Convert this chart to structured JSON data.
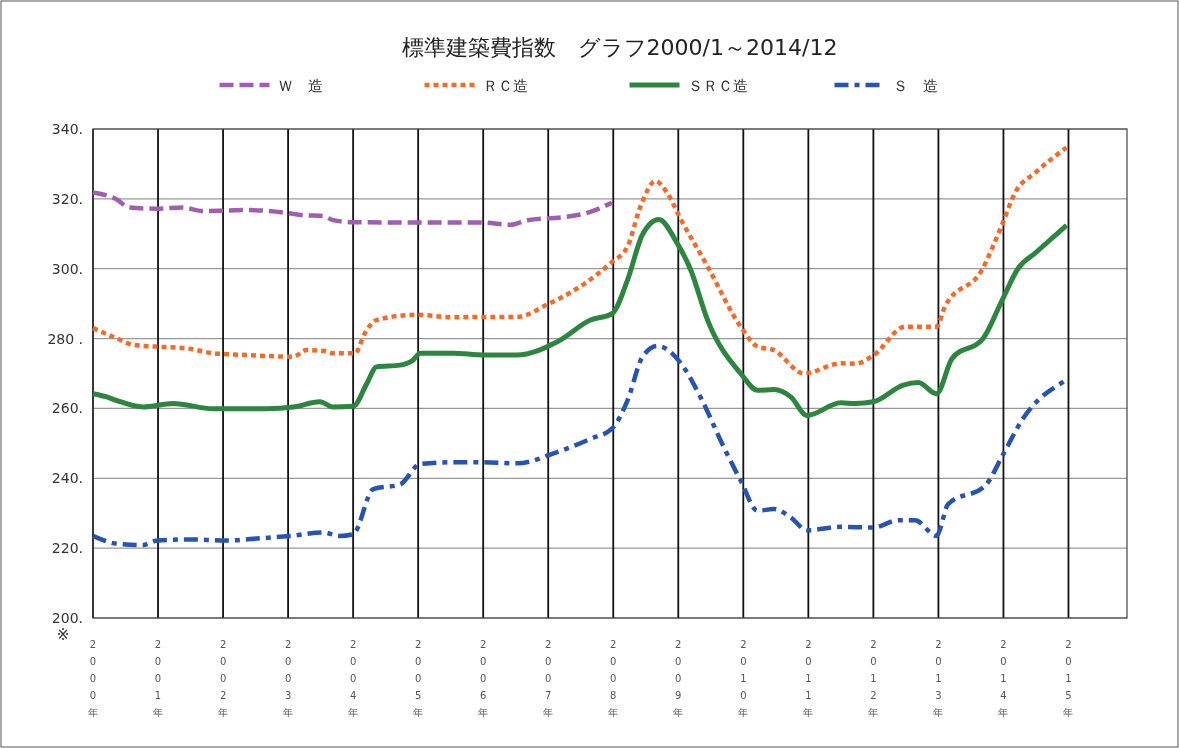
{
  "chart_data": {
    "type": "line",
    "title": "標準建築費指数　グラフ2000/1～2014/12",
    "xlim": [
      2000,
      2015.9
    ],
    "xticks": [
      {
        "value": 2000,
        "label": "2000年"
      },
      {
        "value": 2001,
        "label": "2001年"
      },
      {
        "value": 2002,
        "label": "2002年"
      },
      {
        "value": 2003,
        "label": "2003年"
      },
      {
        "value": 2004,
        "label": "2004年"
      },
      {
        "value": 2005,
        "label": "2005年"
      },
      {
        "value": 2006,
        "label": "2006年"
      },
      {
        "value": 2007,
        "label": "2007年"
      },
      {
        "value": 2008,
        "label": "2008年"
      },
      {
        "value": 2009,
        "label": "2009年"
      },
      {
        "value": 2010,
        "label": "2010年"
      },
      {
        "value": 2011,
        "label": "2011年"
      },
      {
        "value": 2012,
        "label": "2012年"
      },
      {
        "value": 2013,
        "label": "2013年"
      },
      {
        "value": 2014,
        "label": "2014年"
      },
      {
        "value": 2015,
        "label": "2015年"
      }
    ],
    "ylim": [
      200,
      340
    ],
    "yticks": [
      {
        "value": 200,
        "label": "200."
      },
      {
        "value": 220,
        "label": "220."
      },
      {
        "value": 240,
        "label": "240."
      },
      {
        "value": 260,
        "label": "260."
      },
      {
        "value": 280,
        "label": "280 ."
      },
      {
        "value": 300,
        "label": "300."
      },
      {
        "value": 320,
        "label": "320."
      },
      {
        "value": 340,
        "label": "340."
      }
    ],
    "grid": true,
    "legend": "top",
    "annotations": [
      "※"
    ],
    "series": [
      {
        "name": "Ｗ　造",
        "color": "#a05fae",
        "line_style": "dashed",
        "x": [
          2000,
          2000.36,
          2000.56,
          2000.97,
          2001.38,
          2001.69,
          2002.36,
          2002.97,
          2003.23,
          2003.54,
          2003.69,
          2004.0,
          2005.54,
          2006.0,
          2006.42,
          2006.68,
          2007.29,
          2007.6,
          2007.98
        ],
        "values": [
          321.8,
          319.9,
          317.5,
          317.2,
          317.5,
          316.5,
          316.8,
          316,
          315.3,
          315.1,
          313.9,
          313.3,
          313.2,
          313.2,
          312.6,
          313.9,
          314.9,
          316,
          318.9
        ]
      },
      {
        "name": "ＲＣ造",
        "color": "#f26b2a",
        "line_style": "dotted",
        "x": [
          2000,
          2000.36,
          2000.62,
          2000.97,
          2001.44,
          2001.85,
          2002.36,
          2003.08,
          2003.28,
          2003.54,
          2003.69,
          2004.03,
          2004.18,
          2004.36,
          2004.97,
          2005.54,
          2006.0,
          2006.52,
          2006.98,
          2007.5,
          2007.96,
          2008.22,
          2008.42,
          2008.65,
          2008.83,
          2009.04,
          2009.45,
          2009.96,
          2010.22,
          2010.47,
          2010.93,
          2011.5,
          2011.72,
          2012.0,
          2012.49,
          2012.97,
          2013.1,
          2013.67,
          2013.97,
          2014.18,
          2014.49,
          2014.97
        ],
        "values": [
          283.0,
          280.1,
          278.2,
          277.7,
          277.2,
          275.8,
          275.3,
          274.8,
          276.7,
          276.5,
          275.8,
          275.8,
          281.5,
          285.3,
          286.8,
          286.1,
          286.2,
          286.2,
          289.7,
          295,
          301.6,
          306.4,
          317.9,
          325.1,
          321.7,
          314.1,
          300.7,
          283.4,
          277.7,
          276.7,
          270,
          272.9,
          272.8,
          275.2,
          283.4,
          283.4,
          289.1,
          299.7,
          312.2,
          321.8,
          327.5,
          334.7
        ]
      },
      {
        "name": "ＳＲＣ造",
        "color": "#2e8540",
        "line_style": "solid",
        "x": [
          2000,
          2000.21,
          2000.36,
          2000.77,
          2001.23,
          2001.85,
          2002.67,
          2003.08,
          2003.49,
          2003.69,
          2004.0,
          2004.21,
          2004.36,
          2004.72,
          2004.92,
          2005.03,
          2005.54,
          2006.0,
          2006.52,
          2007.14,
          2007.65,
          2007.98,
          2008.22,
          2008.45,
          2008.7,
          2008.98,
          2009.19,
          2009.45,
          2009.96,
          2010.22,
          2010.47,
          2010.73,
          2010.98,
          2011.5,
          2011.72,
          2012.0,
          2012.46,
          2012.69,
          2012.97,
          2013.21,
          2013.69,
          2013.97,
          2014.23,
          2014.49,
          2014.97
        ],
        "values": [
          264.2,
          263.3,
          262.3,
          260.4,
          261.4,
          259.9,
          259.9,
          260.4,
          261.9,
          260.4,
          260.6,
          267.1,
          271.9,
          272.4,
          273.8,
          275.8,
          275.8,
          275.3,
          275.3,
          279.1,
          285.3,
          287.1,
          296.8,
          309.8,
          314.1,
          307.4,
          299.7,
          285.3,
          270,
          265.2,
          265.4,
          263.3,
          258.0,
          261.6,
          261.4,
          261.9,
          266.7,
          267.4,
          264.2,
          274.3,
          280.1,
          290.6,
          300.2,
          304.5,
          312.4
        ]
      },
      {
        "name": "Ｓ　造",
        "color": "#2754b0",
        "line_style": "dashdot",
        "x": [
          2000,
          2000.36,
          2000.77,
          2000.97,
          2001.49,
          2002.05,
          2002.56,
          2003.03,
          2003.54,
          2003.79,
          2004.0,
          2004.31,
          2004.72,
          2005.03,
          2005.54,
          2006.0,
          2006.52,
          2007.14,
          2007.65,
          2007.98,
          2008.22,
          2008.45,
          2008.68,
          2009.04,
          2009.34,
          2009.7,
          2009.96,
          2010.22,
          2010.47,
          2010.73,
          2010.98,
          2011.5,
          2012.0,
          2012.38,
          2012.64,
          2012.97,
          2013.15,
          2013.72,
          2014.0,
          2014.28,
          2014.97
        ],
        "values": [
          223.5,
          221.3,
          220.9,
          222.1,
          222.5,
          222.2,
          222.8,
          223.5,
          224.5,
          223.5,
          224,
          236.9,
          238.2,
          244.1,
          244.6,
          244.6,
          244.3,
          247.5,
          251.3,
          254.2,
          262.3,
          274.8,
          277.9,
          272.9,
          263.3,
          248.9,
          239.3,
          230.7,
          231.2,
          228.8,
          225.1,
          226.1,
          225.9,
          228,
          228,
          223.5,
          232.6,
          237.9,
          247,
          256.5,
          268.1
        ]
      }
    ]
  }
}
